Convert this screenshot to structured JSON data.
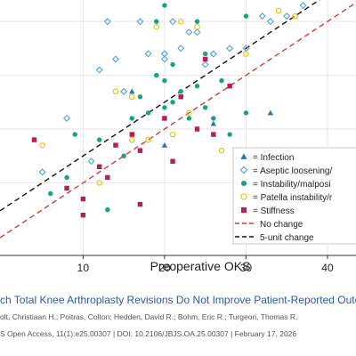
{
  "chart_data": {
    "type": "scatter",
    "xlabel": "Preoperative OKS",
    "ylabel": "",
    "xlim": [
      -0.2,
      43.5
    ],
    "ylim": [
      -3.5,
      44
    ],
    "x_ticks": [
      10,
      20,
      30,
      40
    ],
    "grid": true,
    "legend": {
      "placement": "right",
      "entries": [
        "= Infection",
        "= Aseptic loosening/",
        "= Instability/malposi",
        "= Patella instability/r",
        "= Stiffness",
        "No change",
        "5-unit change"
      ]
    },
    "series": [
      {
        "name": "= Infection",
        "marker": "triangle",
        "color": "#2f6fbf",
        "x": [
          16,
          20,
          26,
          33
        ],
        "y": [
          27,
          17,
          21,
          23
        ]
      },
      {
        "name": "= Aseptic loosening/",
        "marker": "diamond",
        "color": "#5aa7e0",
        "x": [
          5,
          8,
          11,
          12,
          13,
          14,
          15,
          17,
          18,
          20,
          20,
          21,
          22,
          23,
          24,
          25,
          26,
          28,
          30,
          32,
          33,
          35,
          37
        ],
        "y": [
          12,
          22,
          14,
          31,
          40,
          33,
          27,
          40,
          34,
          34,
          33,
          40,
          35,
          38,
          38,
          32,
          34,
          35,
          35,
          41,
          40,
          41,
          43
        ]
      },
      {
        "name": "= Instability/malposi",
        "marker": "circle",
        "color": "#1aa37a",
        "x": [
          6,
          8,
          9,
          12,
          13,
          15,
          16,
          17,
          18,
          19,
          19,
          20,
          20,
          20,
          21,
          21,
          22,
          23,
          24,
          24,
          25,
          25,
          26,
          27,
          28,
          30,
          30
        ],
        "y": [
          8,
          11,
          19,
          18,
          5,
          15,
          22,
          26,
          23,
          30,
          40,
          24,
          29,
          43,
          25,
          32,
          27,
          22,
          28,
          40,
          24,
          34,
          22,
          29,
          19,
          23,
          41
        ]
      },
      {
        "name": "= Patella instability/r",
        "marker": "circle-open",
        "color": "#e6c619",
        "x": [
          5,
          12,
          14,
          16,
          16,
          18,
          19,
          21,
          22,
          23,
          24,
          27,
          30,
          34,
          36
        ],
        "y": [
          17,
          10,
          27,
          18,
          26,
          18,
          39,
          19,
          40,
          23,
          39,
          16,
          34,
          42,
          41
        ]
      },
      {
        "name": "= Stiffness",
        "marker": "square",
        "color": "#b51f55",
        "x": [
          4,
          8,
          10,
          10,
          12,
          13,
          14,
          16,
          17,
          17,
          20,
          21,
          22,
          24,
          25,
          26,
          28
        ],
        "y": [
          18,
          9,
          7,
          4,
          13,
          11,
          17,
          19,
          16,
          6,
          22,
          14,
          26,
          20,
          33,
          19,
          28
        ]
      }
    ],
    "reference_lines": [
      {
        "name": "No change",
        "style": "dashed",
        "color": "#d43a3a",
        "slope": 1,
        "intercept": 0
      },
      {
        "name": "5-unit change",
        "style": "dashed",
        "color": "#111111",
        "slope": 1,
        "intercept": 5
      }
    ]
  },
  "caption": {
    "title": "ch Total Knee Arthroplasty Revisions Do Not Improve Patient-Reported Outcomes?",
    "authors": "olt, Christiaan H.; Poitras, Colton; Hedden, David R.; Bohm, Eric R.; Turgeon, Thomas R.",
    "citation": "S Open Access, 11(1):e25.00307 | DOI: 10.2106/JBJS.OA.25.00307 | February 17, 2026"
  },
  "colors": {
    "grid": "#e6e6e6",
    "axis": "#333333"
  }
}
